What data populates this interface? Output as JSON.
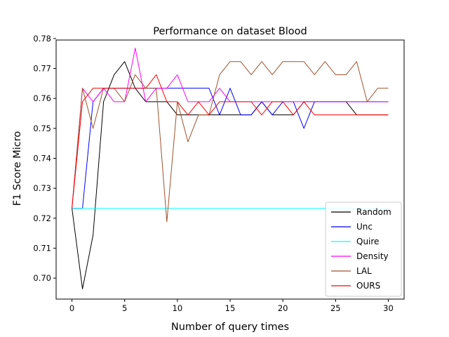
{
  "chart_data": {
    "type": "line",
    "title": "Performance on dataset Blood",
    "xlabel": "Number of query times",
    "ylabel": "F1 Score Micro",
    "xlim": [
      -1.5,
      31.5
    ],
    "ylim": [
      0.693,
      0.7795
    ],
    "xticks": [
      0,
      5,
      10,
      15,
      20,
      25,
      30
    ],
    "yticks": [
      0.7,
      0.71,
      0.72,
      0.73,
      0.74,
      0.75,
      0.76,
      0.77,
      0.78
    ],
    "ytick_labels": [
      "0.70",
      "0.71",
      "0.72",
      "0.73",
      "0.74",
      "0.75",
      "0.76",
      "0.77",
      "0.78"
    ],
    "grid": false,
    "legend_position": "lower-right",
    "x": [
      0,
      1,
      2,
      3,
      4,
      5,
      6,
      7,
      8,
      9,
      10,
      11,
      12,
      13,
      14,
      15,
      16,
      17,
      18,
      19,
      20,
      21,
      22,
      23,
      24,
      25,
      26,
      27,
      28,
      29,
      30
    ],
    "series": [
      {
        "name": "Random",
        "color": "#000000",
        "values": [
          0.7233,
          0.6964,
          0.7143,
          0.7589,
          0.7679,
          0.7723,
          0.7634,
          0.7589,
          0.7589,
          0.7589,
          0.7545,
          0.7545,
          0.7545,
          0.7545,
          0.7545,
          0.7545,
          0.7545,
          0.7545,
          0.7589,
          0.7545,
          0.7545,
          0.7545,
          0.7589,
          0.7589,
          0.7589,
          0.7589,
          0.7589,
          0.7545,
          0.7545,
          0.7545,
          0.7545
        ]
      },
      {
        "name": "Unc",
        "color": "#0000ff",
        "values": [
          0.7233,
          0.7233,
          0.7589,
          0.7634,
          0.7634,
          0.7634,
          0.7634,
          0.7634,
          0.7634,
          0.7634,
          0.7634,
          0.7634,
          0.7634,
          0.7634,
          0.7545,
          0.7634,
          0.7545,
          0.7545,
          0.7589,
          0.7545,
          0.7589,
          0.7589,
          0.75,
          0.7589,
          0.7589,
          0.7589,
          0.7589,
          0.7589,
          0.7589,
          0.7589,
          0.7589
        ]
      },
      {
        "name": "Quire",
        "color": "#00ffff",
        "values": [
          0.7233,
          0.7233,
          0.7233,
          0.7233,
          0.7233,
          0.7233,
          0.7233,
          0.7233,
          0.7233,
          0.7233,
          0.7233,
          0.7233,
          0.7233,
          0.7233,
          0.7233,
          0.7233,
          0.7233,
          0.7233,
          0.7233,
          0.7233,
          0.7233,
          0.7233,
          0.7233,
          0.7233,
          0.7233,
          0.7233,
          0.7233,
          0.7233,
          0.7233,
          0.7233,
          0.7233
        ]
      },
      {
        "name": "Density",
        "color": "#ff00ff",
        "values": [
          0.7233,
          0.7634,
          0.7589,
          0.7634,
          0.7589,
          0.7589,
          0.7768,
          0.7589,
          0.7634,
          0.7634,
          0.7679,
          0.7589,
          0.7589,
          0.7589,
          0.7634,
          0.7589,
          0.7589,
          0.7589,
          0.7589,
          0.7589,
          0.7589,
          0.7589,
          0.7589,
          0.7589,
          0.7589,
          0.7589,
          0.7589,
          0.7589,
          0.7589,
          0.7589,
          0.7589
        ]
      },
      {
        "name": "LAL",
        "color": "#a0522d",
        "values": [
          0.7233,
          0.7634,
          0.75,
          0.7634,
          0.7634,
          0.7589,
          0.7679,
          0.7634,
          0.7634,
          0.7188,
          0.7589,
          0.7455,
          0.7545,
          0.7545,
          0.7679,
          0.7723,
          0.7723,
          0.7679,
          0.7723,
          0.7679,
          0.7723,
          0.7723,
          0.7723,
          0.7679,
          0.7723,
          0.7679,
          0.7679,
          0.7723,
          0.7589,
          0.7634,
          0.7634
        ]
      },
      {
        "name": "OURS",
        "color": "#ff0000",
        "values": [
          0.7233,
          0.7589,
          0.7634,
          0.7634,
          0.7634,
          0.7634,
          0.7634,
          0.7634,
          0.7679,
          0.7589,
          0.7589,
          0.7545,
          0.7589,
          0.7545,
          0.7589,
          0.7589,
          0.7589,
          0.7589,
          0.7545,
          0.7589,
          0.7589,
          0.7545,
          0.7589,
          0.7545,
          0.7545,
          0.7545,
          0.7545,
          0.7545,
          0.7545,
          0.7545,
          0.7545
        ]
      }
    ]
  }
}
